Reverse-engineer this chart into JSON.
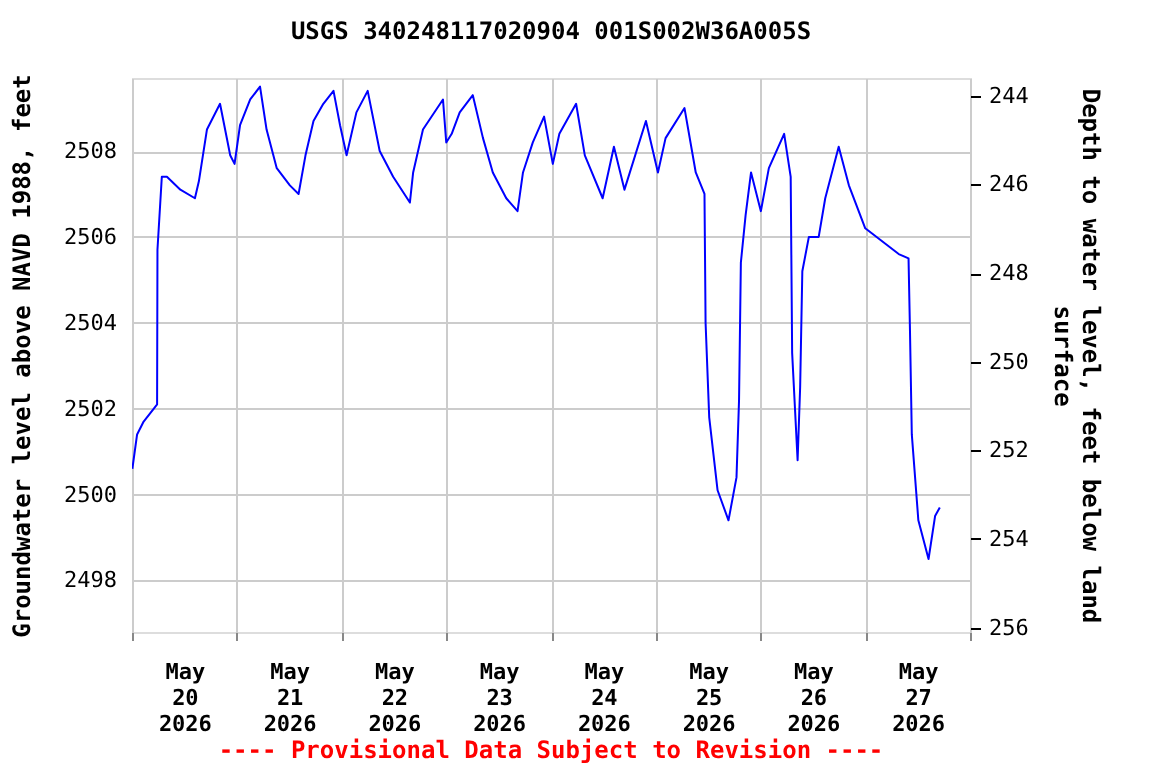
{
  "chart_data": {
    "type": "line",
    "title": "USGS 340248117020904 001S002W36A005S",
    "xlabel": null,
    "ylabel": "Groundwater level above NAVD 1988, feet",
    "y2label": "Depth to water level, feet below land\nsurface",
    "x": [
      "2026-05-20T00:05",
      "2026-05-20T01:10",
      "2026-05-20T02:40",
      "2026-05-20T05:00",
      "2026-05-20T05:45",
      "2026-05-20T05:50",
      "2026-05-20T06:50",
      "2026-05-20T08:00",
      "2026-05-20T11:05",
      "2026-05-20T14:25",
      "2026-05-20T15:20",
      "2026-05-20T17:10",
      "2026-05-20T20:10",
      "2026-05-20T22:30",
      "2026-05-20T23:30",
      "2026-05-21T00:45",
      "2026-05-21T03:05",
      "2026-05-21T05:20",
      "2026-05-21T06:50",
      "2026-05-21T09:10",
      "2026-05-21T12:10",
      "2026-05-21T14:10",
      "2026-05-21T15:45",
      "2026-05-21T17:35",
      "2026-05-21T19:50",
      "2026-05-21T22:10",
      "2026-05-21T23:40",
      "2026-05-22T01:10",
      "2026-05-22T03:25",
      "2026-05-22T06:00",
      "2026-05-22T08:45",
      "2026-05-22T11:50",
      "2026-05-22T15:40",
      "2026-05-22T16:25",
      "2026-05-22T18:40",
      "2026-05-22T23:15",
      "2026-05-23T00:00",
      "2026-05-23T01:15",
      "2026-05-23T03:05",
      "2026-05-23T06:05",
      "2026-05-23T08:25",
      "2026-05-23T10:40",
      "2026-05-23T13:45",
      "2026-05-23T16:20",
      "2026-05-23T17:35",
      "2026-05-23T19:50",
      "2026-05-23T22:25",
      "2026-05-24T00:25",
      "2026-05-24T01:55",
      "2026-05-24T05:45",
      "2026-05-24T07:45",
      "2026-05-24T11:50",
      "2026-05-24T14:25",
      "2026-05-24T16:50",
      "2026-05-24T21:45",
      "2026-05-25T00:30",
      "2026-05-25T02:15",
      "2026-05-25T06:35",
      "2026-05-25T09:10",
      "2026-05-25T11:10",
      "2026-05-25T11:25",
      "2026-05-25T12:15",
      "2026-05-25T14:10",
      "2026-05-25T16:40",
      "2026-05-25T18:30",
      "2026-05-25T19:05",
      "2026-05-25T19:30",
      "2026-05-25T20:35",
      "2026-05-25T21:50",
      "2026-05-26T00:05",
      "2026-05-26T01:55",
      "2026-05-26T05:25",
      "2026-05-26T06:55",
      "2026-05-26T07:15",
      "2026-05-26T08:30",
      "2026-05-26T09:05",
      "2026-05-26T09:35",
      "2026-05-26T11:05",
      "2026-05-26T13:20",
      "2026-05-26T14:50",
      "2026-05-26T17:55",
      "2026-05-26T20:15",
      "2026-05-27T00:00",
      "2026-05-27T07:40",
      "2026-05-27T09:55",
      "2026-05-27T10:15",
      "2026-05-27T10:40",
      "2026-05-27T12:10",
      "2026-05-27T14:30",
      "2026-05-27T16:00",
      "2026-05-27T17:05"
    ],
    "series": [
      {
        "color": "#0000ff",
        "values": [
          2500.6,
          2501.4,
          2501.7,
          2502.0,
          2502.1,
          2505.7,
          2507.4,
          2507.4,
          2507.1,
          2506.9,
          2507.3,
          2508.5,
          2509.1,
          2507.9,
          2507.7,
          2508.6,
          2509.2,
          2509.5,
          2508.5,
          2507.6,
          2507.2,
          2507.0,
          2507.9,
          2508.7,
          2509.1,
          2509.4,
          2508.6,
          2507.9,
          2508.9,
          2509.4,
          2508.0,
          2507.4,
          2506.8,
          2507.5,
          2508.5,
          2509.2,
          2508.2,
          2508.4,
          2508.9,
          2509.3,
          2508.3,
          2507.5,
          2506.9,
          2506.6,
          2507.5,
          2508.2,
          2508.8,
          2507.7,
          2508.4,
          2509.1,
          2507.9,
          2506.9,
          2508.1,
          2507.1,
          2508.7,
          2507.5,
          2508.3,
          2509.0,
          2507.5,
          2507.0,
          2504.0,
          2501.8,
          2500.1,
          2499.4,
          2500.4,
          2502.2,
          2505.4,
          2506.5,
          2507.5,
          2506.6,
          2507.6,
          2508.4,
          2507.4,
          2503.3,
          2500.8,
          2502.5,
          2505.2,
          2506.0,
          2506.0,
          2506.9,
          2508.1,
          2507.2,
          2506.2,
          2505.6,
          2505.5,
          2503.8,
          2501.4,
          2499.4,
          2498.5,
          2499.5,
          2499.7
        ]
      }
    ],
    "xlim": [
      "2026-05-20T00:00",
      "2026-05-28T00:00"
    ],
    "xticks": [
      {
        "value": "2026-05-20T00:00",
        "label": null
      },
      {
        "value": "2026-05-20T12:00",
        "label": "May\n20\n2026"
      },
      {
        "value": "2026-05-21T00:00",
        "label": null
      },
      {
        "value": "2026-05-21T12:00",
        "label": "May\n21\n2026"
      },
      {
        "value": "2026-05-22T00:00",
        "label": null
      },
      {
        "value": "2026-05-22T12:00",
        "label": "May\n22\n2026"
      },
      {
        "value": "2026-05-23T00:00",
        "label": null
      },
      {
        "value": "2026-05-23T12:00",
        "label": "May\n23\n2026"
      },
      {
        "value": "2026-05-24T00:00",
        "label": null
      },
      {
        "value": "2026-05-24T12:00",
        "label": "May\n24\n2026"
      },
      {
        "value": "2026-05-25T00:00",
        "label": null
      },
      {
        "value": "2026-05-25T12:00",
        "label": "May\n25\n2026"
      },
      {
        "value": "2026-05-26T00:00",
        "label": null
      },
      {
        "value": "2026-05-26T12:00",
        "label": "May\n26\n2026"
      },
      {
        "value": "2026-05-27T00:00",
        "label": null
      },
      {
        "value": "2026-05-27T12:00",
        "label": "May\n27\n2026"
      },
      {
        "value": "2026-05-28T00:00",
        "label": null
      }
    ],
    "ylim": [
      2496.8,
      2509.7
    ],
    "yticks": [
      2498,
      2500,
      2502,
      2504,
      2506,
      2508
    ],
    "y2lim": [
      256.1,
      243.6
    ],
    "y2ticks": [
      244,
      246,
      248,
      250,
      252,
      254,
      256
    ],
    "grid": true,
    "legend": false,
    "annotations": [
      "---- Provisional Data Subject to Revision ----"
    ]
  }
}
